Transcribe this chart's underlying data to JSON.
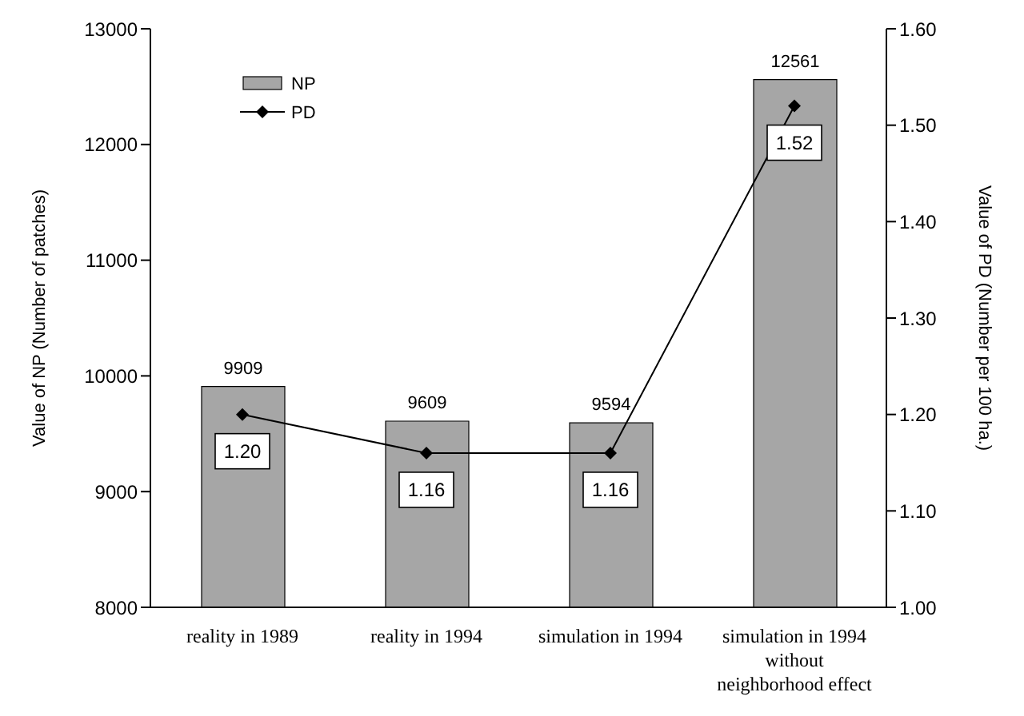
{
  "chart_data": {
    "type": "bar",
    "categories": [
      "reality in 1989",
      "reality in 1994",
      "simulation in 1994",
      "simulation in 1994\nwithout\nneighborhood effect"
    ],
    "ylabel": "Value of NP (Number of patches)",
    "y2label": "Value of PD (Number per 100 ha.)",
    "series": [
      {
        "name": "NP",
        "color": "#a6a6a6",
        "values": [
          9909,
          9609,
          9594,
          12561
        ],
        "value_labels": [
          "9909",
          "9609",
          "9594",
          "12561"
        ]
      },
      {
        "name": "PD",
        "type": "line",
        "axis": "y2",
        "color": "#000000",
        "values": [
          1.2,
          1.16,
          1.16,
          1.52
        ],
        "value_labels": [
          "1.20",
          "1.16",
          "1.16",
          "1.52"
        ],
        "marker": "diamond",
        "line_style": "solid"
      }
    ],
    "ylim": [
      8000,
      13000
    ],
    "yticks": [
      8000,
      9000,
      10000,
      11000,
      12000,
      13000
    ],
    "y2lim": [
      1,
      1.6
    ],
    "y2ticks": [
      {
        "value": 1,
        "label": "1.00"
      },
      {
        "value": 1.1,
        "label": "1.10"
      },
      {
        "value": 1.2,
        "label": "1.20"
      },
      {
        "value": 1.3,
        "label": "1.30"
      },
      {
        "value": 1.4,
        "label": "1.40"
      },
      {
        "value": 1.5,
        "label": "1.50"
      },
      {
        "value": 1.6,
        "label": "1.60"
      }
    ],
    "grid": false,
    "legend": "top left"
  }
}
